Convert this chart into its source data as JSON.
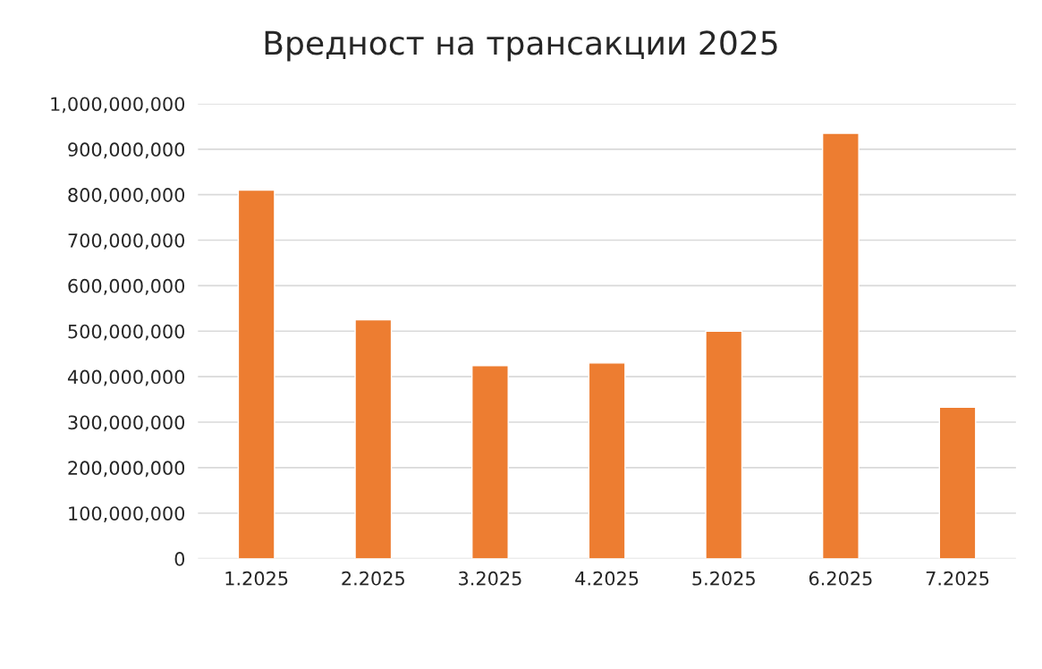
{
  "chart_data": {
    "type": "bar",
    "title": "Вредност на трансакции 2025",
    "categories": [
      "1.2025",
      "2.2025",
      "3.2025",
      "4.2025",
      "5.2025",
      "6.2025",
      "7.2025"
    ],
    "values": [
      810000000,
      525000000,
      424000000,
      430000000,
      500000000,
      935000000,
      333000000
    ],
    "color": "#ed7d31",
    "ylim": [
      0,
      1000000000
    ],
    "yticks": [
      0,
      {
        "value": 100000000,
        "label": "100,000,000"
      },
      {
        "value": 200000000,
        "label": "200,000,000"
      },
      {
        "value": 300000000,
        "label": "300,000,000"
      },
      {
        "value": 400000000,
        "label": "400,000,000"
      },
      {
        "value": 500000000,
        "label": "500,000,000"
      },
      {
        "value": 600000000,
        "label": "600,000,000"
      },
      {
        "value": 700000000,
        "label": "700,000,000"
      },
      {
        "value": 800000000,
        "label": "800,000,000"
      },
      {
        "value": 900000000,
        "label": "900,000,000"
      },
      {
        "value": 1000000000,
        "label": "1,000,000,000"
      }
    ],
    "grid": "y"
  }
}
